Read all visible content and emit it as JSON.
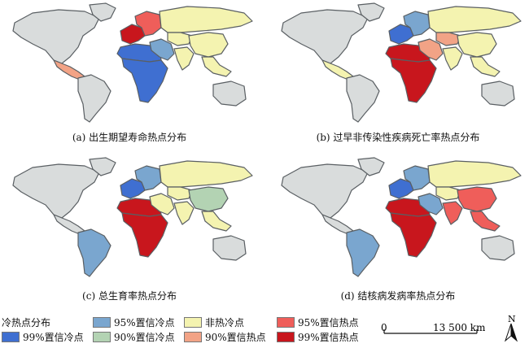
{
  "colors": {
    "cold99": "#3f6fd1",
    "cold95": "#7aa6cf",
    "cold90": "#b3d3b3",
    "none": "#f4f3b0",
    "hot90": "#f2a386",
    "hot95": "#ef5e5a",
    "hot99": "#c8161d",
    "nodata": "#d9dcdc",
    "border": "#5a5f63"
  },
  "panels": [
    {
      "caption": "(a) 出生期望寿命热点分布",
      "regions": {
        "northAmerica": "nodata",
        "greenland": "nodata",
        "centralAmerica": "hot90",
        "southAmerica": "nodata",
        "europeWest": "hot99",
        "europeEast": "hot95",
        "russia": "none",
        "northAfrica": "cold99",
        "subSaharan": "cold99",
        "middleEast": "cold95",
        "southAsia": "none",
        "china": "none",
        "southeastAsia": "none",
        "australia": "nodata",
        "centralAsia": "none"
      }
    },
    {
      "caption": "(b) 过早非传染性疾病死亡率热点分布",
      "regions": {
        "northAmerica": "nodata",
        "greenland": "nodata",
        "centralAmerica": "none",
        "southAmerica": "nodata",
        "europeWest": "cold99",
        "europeEast": "cold95",
        "russia": "none",
        "northAfrica": "hot99",
        "subSaharan": "hot99",
        "middleEast": "hot90",
        "southAsia": "none",
        "china": "none",
        "southeastAsia": "none",
        "australia": "nodata",
        "centralAsia": "hot90"
      }
    },
    {
      "caption": "(c) 总生育率热点分布",
      "regions": {
        "northAmerica": "nodata",
        "greenland": "nodata",
        "centralAmerica": "nodata",
        "southAmerica": "cold95",
        "europeWest": "cold99",
        "europeEast": "cold95",
        "russia": "none",
        "northAfrica": "hot99",
        "subSaharan": "hot99",
        "middleEast": "none",
        "southAsia": "none",
        "china": "cold90",
        "southeastAsia": "none",
        "australia": "nodata",
        "centralAsia": "none"
      }
    },
    {
      "caption": "(d) 结核病发病率热点分布",
      "regions": {
        "northAmerica": "nodata",
        "greenland": "nodata",
        "centralAmerica": "nodata",
        "southAmerica": "cold95",
        "europeWest": "cold99",
        "europeEast": "cold95",
        "russia": "none",
        "northAfrica": "hot99",
        "subSaharan": "hot99",
        "middleEast": "cold95",
        "southAsia": "hot95",
        "china": "hot95",
        "southeastAsia": "hot95",
        "australia": "nodata",
        "centralAsia": "none"
      }
    }
  ],
  "legend": {
    "title": "冷热点分布",
    "items": [
      {
        "key": "cold99",
        "label": "99%置信冷点"
      },
      {
        "key": "cold95",
        "label": "95%置信冷点"
      },
      {
        "key": "cold90",
        "label": "90%置信冷点"
      },
      {
        "key": "none",
        "label": "非热冷点"
      },
      {
        "key": "hot90",
        "label": "90%置信热点"
      },
      {
        "key": "hot95",
        "label": "95%置信热点"
      },
      {
        "key": "hot99",
        "label": "99%置信热点"
      }
    ]
  },
  "scale": {
    "start": "0",
    "end": "13 500 km"
  },
  "north": {
    "letter": "N"
  }
}
